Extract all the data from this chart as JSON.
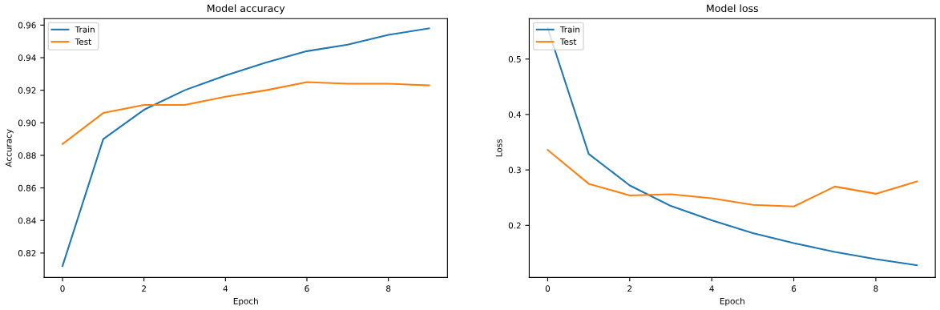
{
  "chart_data": [
    {
      "type": "line",
      "title": "Model accuracy",
      "xlabel": "Epoch",
      "ylabel": "Accuracy",
      "x": [
        0,
        1,
        2,
        3,
        4,
        5,
        6,
        7,
        8,
        9
      ],
      "series": [
        {
          "name": "Train",
          "color": "#1f77b4",
          "values": [
            0.812,
            0.89,
            0.908,
            0.92,
            0.929,
            0.937,
            0.944,
            0.948,
            0.954,
            0.958
          ]
        },
        {
          "name": "Test",
          "color": "#ff7f0e",
          "values": [
            0.887,
            0.906,
            0.911,
            0.911,
            0.916,
            0.92,
            0.925,
            0.924,
            0.924,
            0.923
          ]
        }
      ],
      "xlim": [
        -0.45,
        9.45
      ],
      "xticks": [
        0,
        2,
        4,
        6,
        8
      ],
      "ylim": [
        0.805,
        0.964
      ],
      "yticks": [
        {
          "value": 0.82,
          "label": "0.82"
        },
        {
          "value": 0.84,
          "label": "0.84"
        },
        {
          "value": 0.86,
          "label": "0.86"
        },
        {
          "value": 0.88,
          "label": "0.88"
        },
        {
          "value": 0.9,
          "label": "0.90"
        },
        {
          "value": 0.92,
          "label": "0.92"
        },
        {
          "value": 0.94,
          "label": "0.94"
        },
        {
          "value": 0.96,
          "label": "0.96"
        }
      ],
      "legend": "top left",
      "grid": false
    },
    {
      "type": "line",
      "title": "Model loss",
      "xlabel": "Epoch",
      "ylabel": "Loss",
      "x": [
        0,
        1,
        2,
        3,
        4,
        5,
        6,
        7,
        8,
        9
      ],
      "series": [
        {
          "name": "Train",
          "color": "#1f77b4",
          "values": [
            0.556,
            0.329,
            0.272,
            0.235,
            0.209,
            0.186,
            0.168,
            0.152,
            0.139,
            0.128
          ]
        },
        {
          "name": "Test",
          "color": "#ff7f0e",
          "values": [
            0.336,
            0.275,
            0.254,
            0.256,
            0.249,
            0.237,
            0.234,
            0.27,
            0.257,
            0.279
          ]
        }
      ],
      "xlim": [
        -0.45,
        9.45
      ],
      "xticks": [
        0,
        2,
        4,
        6,
        8
      ],
      "ylim": [
        0.106,
        0.573
      ],
      "yticks": [
        0.2,
        0.3,
        0.4,
        0.5
      ],
      "legend": "top left",
      "grid": false
    }
  ]
}
